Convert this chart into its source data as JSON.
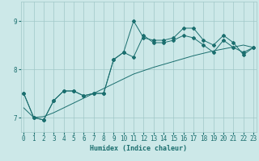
{
  "xlabel": "Humidex (Indice chaleur)",
  "background_color": "#cce8e8",
  "grid_color": "#a0c8c8",
  "line_color": "#1a6e6e",
  "x_values": [
    0,
    1,
    2,
    3,
    4,
    5,
    6,
    7,
    8,
    9,
    10,
    11,
    12,
    13,
    14,
    15,
    16,
    17,
    18,
    19,
    20,
    21,
    22,
    23
  ],
  "line1_y": [
    7.5,
    7.0,
    6.95,
    7.35,
    7.55,
    7.55,
    7.45,
    7.5,
    7.5,
    8.2,
    8.35,
    8.25,
    8.7,
    8.55,
    8.55,
    8.6,
    8.7,
    8.65,
    8.5,
    8.35,
    8.6,
    8.45,
    8.35,
    8.45
  ],
  "line2_y": [
    7.5,
    7.0,
    6.95,
    7.35,
    7.55,
    7.55,
    7.45,
    7.5,
    7.5,
    8.2,
    8.35,
    9.0,
    8.65,
    8.6,
    8.6,
    8.65,
    8.85,
    8.85,
    8.6,
    8.5,
    8.7,
    8.55,
    8.3,
    8.45
  ],
  "line3_y": [
    7.2,
    7.0,
    7.02,
    7.1,
    7.2,
    7.3,
    7.4,
    7.5,
    7.6,
    7.7,
    7.8,
    7.9,
    7.97,
    8.04,
    8.1,
    8.16,
    8.22,
    8.28,
    8.33,
    8.38,
    8.42,
    8.46,
    8.5,
    8.45
  ],
  "ylim": [
    6.7,
    9.4
  ],
  "yticks": [
    7,
    8,
    9
  ],
  "xticks": [
    0,
    1,
    2,
    3,
    4,
    5,
    6,
    7,
    8,
    9,
    10,
    11,
    12,
    13,
    14,
    15,
    16,
    17,
    18,
    19,
    20,
    21,
    22,
    23
  ],
  "axis_fontsize": 6,
  "tick_fontsize": 5.5
}
